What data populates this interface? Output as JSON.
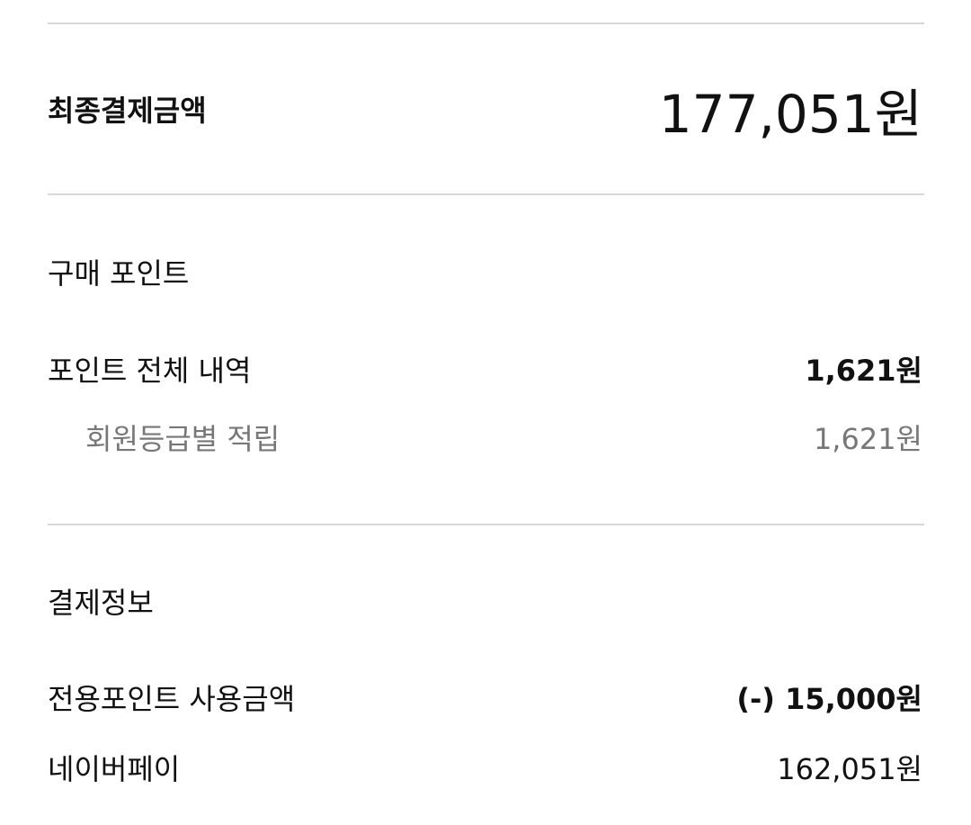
{
  "total": {
    "label": "최종결제금액",
    "value": "177,051원"
  },
  "points": {
    "title": "구매 포인트",
    "total_label": "포인트 전체 내역",
    "total_value": "1,621원",
    "sub_label": "회원등급별 적립",
    "sub_value": "1,621원"
  },
  "payment": {
    "title": "결제정보",
    "rows": [
      {
        "label": "전용포인트 사용금액",
        "value": "(-) 15,000원"
      },
      {
        "label": "네이버페이",
        "value": "162,051원"
      }
    ]
  }
}
